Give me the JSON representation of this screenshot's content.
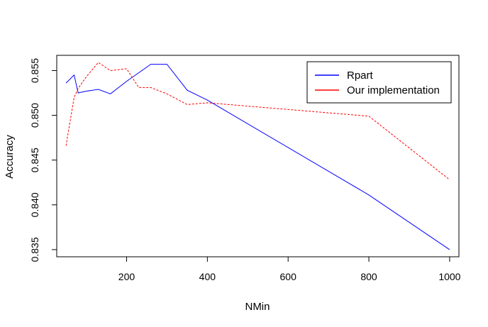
{
  "chart_data": {
    "type": "line",
    "title": "",
    "xlabel": "NMin",
    "ylabel": "Accuracy",
    "xlim": [
      27,
      1023
    ],
    "ylim": [
      0.8342,
      0.8567
    ],
    "xticks": [
      200,
      400,
      600,
      800,
      1000
    ],
    "xtick_labels": [
      "200",
      "400",
      "600",
      "800",
      "1000"
    ],
    "yticks": [
      0.835,
      0.84,
      0.845,
      0.85,
      0.855
    ],
    "ytick_labels": [
      "0.835",
      "0.840",
      "0.845",
      "0.850",
      "0.855"
    ],
    "grid": false,
    "legend_position": "top-right",
    "series": [
      {
        "name": "Rpart",
        "color": "#0000ff",
        "dash": "solid",
        "x": [
          50,
          70,
          80,
          100,
          130,
          160,
          200,
          260,
          300,
          350,
          400,
          800,
          1000
        ],
        "y": [
          0.8536,
          0.8545,
          0.8525,
          0.8527,
          0.8529,
          0.8524,
          0.8538,
          0.8557,
          0.8557,
          0.8528,
          0.8517,
          0.8411,
          0.835
        ]
      },
      {
        "name": "Our implementation",
        "color": "#ff0000",
        "dash": "dashed",
        "x": [
          50,
          70,
          80,
          100,
          130,
          160,
          200,
          230,
          260,
          300,
          350,
          400,
          800,
          1000
        ],
        "y": [
          0.8466,
          0.852,
          0.853,
          0.8543,
          0.8559,
          0.855,
          0.8552,
          0.8531,
          0.8531,
          0.8524,
          0.8512,
          0.8514,
          0.8499,
          0.8428
        ]
      }
    ]
  }
}
